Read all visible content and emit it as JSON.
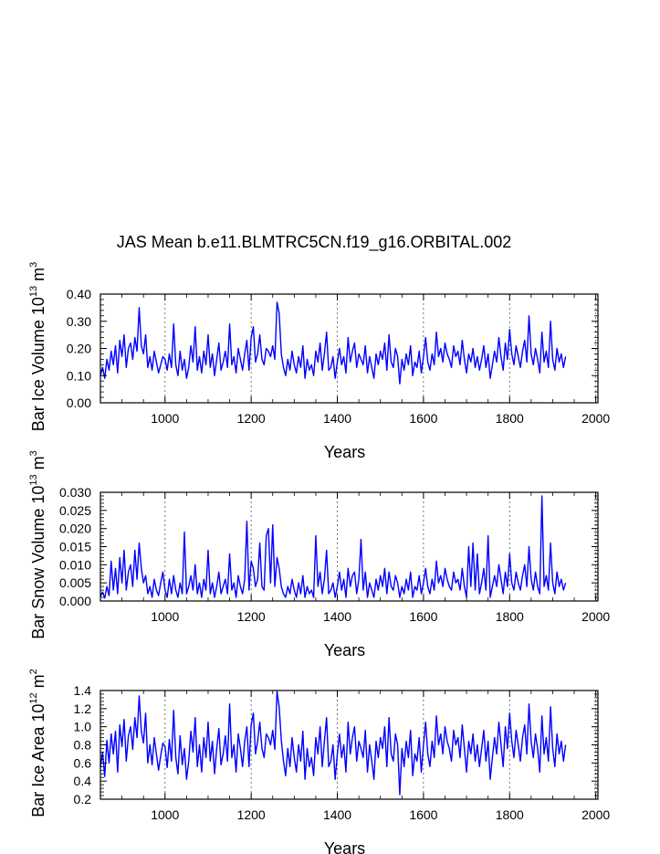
{
  "title": "JAS Mean b.e11.BLMTRC5CN.f19_g16.ORBITAL.002",
  "colors": {
    "series": "#0000ff",
    "axis": "#000000",
    "grid": "#555555"
  },
  "chart_data": [
    {
      "type": "line",
      "name": "Bar Ice Volume",
      "ylabel": {
        "main": "Bar Ice Volume 10",
        "exp": "13",
        "unit": " m",
        "unit_exp": "3"
      },
      "xlabel": "Years",
      "xlim": [
        850,
        2005
      ],
      "ylim": [
        0.0,
        0.4
      ],
      "xticks": [
        1000,
        1200,
        1400,
        1600,
        1800,
        2000
      ],
      "xtick_labels": [
        "1000",
        "1200",
        "1400",
        "1600",
        "1800",
        "2000"
      ],
      "yticks": [
        0.0,
        0.1,
        0.2,
        0.3,
        0.4
      ],
      "ytick_labels": [
        "0.00",
        "0.10",
        "0.20",
        "0.30",
        "0.40"
      ],
      "grid_x": [
        1000,
        1200,
        1400,
        1600,
        1800,
        2000
      ],
      "series": {
        "x_start": 850,
        "x_step": 5,
        "values": [
          0.1,
          0.13,
          0.09,
          0.16,
          0.12,
          0.19,
          0.14,
          0.21,
          0.11,
          0.23,
          0.17,
          0.25,
          0.13,
          0.2,
          0.22,
          0.16,
          0.24,
          0.19,
          0.35,
          0.21,
          0.18,
          0.25,
          0.13,
          0.17,
          0.12,
          0.19,
          0.15,
          0.11,
          0.14,
          0.17,
          0.16,
          0.12,
          0.18,
          0.13,
          0.29,
          0.14,
          0.1,
          0.19,
          0.12,
          0.16,
          0.09,
          0.13,
          0.21,
          0.15,
          0.28,
          0.12,
          0.17,
          0.11,
          0.19,
          0.14,
          0.25,
          0.13,
          0.18,
          0.1,
          0.16,
          0.22,
          0.12,
          0.15,
          0.19,
          0.13,
          0.29,
          0.14,
          0.17,
          0.11,
          0.2,
          0.16,
          0.12,
          0.18,
          0.23,
          0.12,
          0.24,
          0.28,
          0.15,
          0.18,
          0.25,
          0.16,
          0.14,
          0.2,
          0.19,
          0.17,
          0.21,
          0.16,
          0.37,
          0.33,
          0.18,
          0.13,
          0.1,
          0.16,
          0.12,
          0.19,
          0.14,
          0.11,
          0.17,
          0.13,
          0.21,
          0.09,
          0.16,
          0.12,
          0.14,
          0.1,
          0.19,
          0.15,
          0.22,
          0.12,
          0.18,
          0.26,
          0.12,
          0.13,
          0.17,
          0.09,
          0.15,
          0.2,
          0.14,
          0.17,
          0.11,
          0.24,
          0.15,
          0.19,
          0.22,
          0.13,
          0.18,
          0.16,
          0.14,
          0.21,
          0.11,
          0.17,
          0.13,
          0.09,
          0.18,
          0.14,
          0.19,
          0.16,
          0.22,
          0.12,
          0.25,
          0.15,
          0.13,
          0.2,
          0.17,
          0.07,
          0.16,
          0.12,
          0.18,
          0.14,
          0.21,
          0.1,
          0.15,
          0.13,
          0.19,
          0.11,
          0.17,
          0.24,
          0.15,
          0.12,
          0.18,
          0.14,
          0.26,
          0.17,
          0.2,
          0.15,
          0.22,
          0.18,
          0.16,
          0.13,
          0.21,
          0.17,
          0.19,
          0.14,
          0.23,
          0.16,
          0.11,
          0.18,
          0.15,
          0.2,
          0.13,
          0.17,
          0.12,
          0.16,
          0.21,
          0.13,
          0.18,
          0.09,
          0.14,
          0.19,
          0.15,
          0.24,
          0.17,
          0.12,
          0.22,
          0.16,
          0.27,
          0.18,
          0.14,
          0.21,
          0.17,
          0.13,
          0.19,
          0.23,
          0.15,
          0.32,
          0.18,
          0.14,
          0.2,
          0.16,
          0.11,
          0.26,
          0.15,
          0.19,
          0.13,
          0.3,
          0.16,
          0.12,
          0.2,
          0.15,
          0.18,
          0.13,
          0.17
        ]
      }
    },
    {
      "type": "line",
      "name": "Bar Snow Volume",
      "ylabel": {
        "main": "Bar Snow Volume 10",
        "exp": "13",
        "unit": " m",
        "unit_exp": "3"
      },
      "xlabel": "Years",
      "xlim": [
        850,
        2005
      ],
      "ylim": [
        0.0,
        0.03
      ],
      "xticks": [
        1000,
        1200,
        1400,
        1600,
        1800,
        2000
      ],
      "xtick_labels": [
        "1000",
        "1200",
        "1400",
        "1600",
        "1800",
        "2000"
      ],
      "yticks": [
        0.0,
        0.005,
        0.01,
        0.015,
        0.02,
        0.025,
        0.03
      ],
      "ytick_labels": [
        "0.000",
        "0.005",
        "0.010",
        "0.015",
        "0.020",
        "0.025",
        "0.030"
      ],
      "grid_x": [
        1000,
        1200,
        1400,
        1600,
        1800,
        2000
      ],
      "series": {
        "x_start": 850,
        "x_step": 5,
        "values": [
          0.0012,
          0.0025,
          0.0008,
          0.004,
          0.0015,
          0.011,
          0.003,
          0.009,
          0.002,
          0.012,
          0.005,
          0.014,
          0.003,
          0.008,
          0.01,
          0.004,
          0.014,
          0.006,
          0.016,
          0.009,
          0.005,
          0.007,
          0.002,
          0.004,
          0.001,
          0.006,
          0.003,
          0.0015,
          0.005,
          0.008,
          0.003,
          0.001,
          0.006,
          0.002,
          0.007,
          0.003,
          0.001,
          0.005,
          0.002,
          0.019,
          0.002,
          0.004,
          0.007,
          0.003,
          0.01,
          0.002,
          0.005,
          0.001,
          0.006,
          0.003,
          0.014,
          0.002,
          0.005,
          0.001,
          0.004,
          0.008,
          0.002,
          0.004,
          0.006,
          0.002,
          0.013,
          0.003,
          0.005,
          0.001,
          0.007,
          0.004,
          0.002,
          0.006,
          0.022,
          0.003,
          0.011,
          0.009,
          0.004,
          0.006,
          0.016,
          0.004,
          0.003,
          0.018,
          0.02,
          0.005,
          0.021,
          0.004,
          0.012,
          0.009,
          0.004,
          0.002,
          0.001,
          0.004,
          0.002,
          0.006,
          0.003,
          0.001,
          0.005,
          0.002,
          0.007,
          0.001,
          0.004,
          0.002,
          0.003,
          0.001,
          0.018,
          0.004,
          0.008,
          0.002,
          0.006,
          0.014,
          0.002,
          0.003,
          0.005,
          0.001,
          0.004,
          0.008,
          0.003,
          0.006,
          0.001,
          0.009,
          0.004,
          0.007,
          0.008,
          0.002,
          0.006,
          0.017,
          0.003,
          0.008,
          0.001,
          0.005,
          0.003,
          0.001,
          0.006,
          0.003,
          0.007,
          0.004,
          0.009,
          0.002,
          0.008,
          0.004,
          0.003,
          0.007,
          0.005,
          0.001,
          0.004,
          0.002,
          0.006,
          0.003,
          0.008,
          0.001,
          0.004,
          0.003,
          0.007,
          0.002,
          0.005,
          0.009,
          0.004,
          0.002,
          0.006,
          0.003,
          0.011,
          0.005,
          0.007,
          0.004,
          0.009,
          0.006,
          0.004,
          0.003,
          0.008,
          0.005,
          0.006,
          0.003,
          0.009,
          0.004,
          0.001,
          0.015,
          0.004,
          0.016,
          0.003,
          0.013,
          0.002,
          0.005,
          0.009,
          0.003,
          0.018,
          0.001,
          0.004,
          0.007,
          0.004,
          0.01,
          0.006,
          0.002,
          0.008,
          0.004,
          0.013,
          0.005,
          0.003,
          0.008,
          0.005,
          0.003,
          0.007,
          0.01,
          0.004,
          0.015,
          0.006,
          0.003,
          0.008,
          0.004,
          0.002,
          0.029,
          0.004,
          0.007,
          0.003,
          0.016,
          0.005,
          0.002,
          0.008,
          0.004,
          0.006,
          0.003,
          0.005
        ]
      }
    },
    {
      "type": "line",
      "name": "Bar Ice Area",
      "ylabel": {
        "main": "Bar Ice Area 10",
        "exp": "12",
        "unit": " m",
        "unit_exp": "2"
      },
      "xlabel": "Years",
      "xlim": [
        850,
        2005
      ],
      "ylim": [
        0.2,
        1.4
      ],
      "xticks": [
        1000,
        1200,
        1400,
        1600,
        1800,
        2000
      ],
      "xtick_labels": [
        "1000",
        "1200",
        "1400",
        "1600",
        "1800",
        "2000"
      ],
      "yticks": [
        0.2,
        0.4,
        0.6,
        0.8,
        1.0,
        1.2,
        1.4
      ],
      "ytick_labels": [
        "0.2",
        "0.4",
        "0.6",
        "0.8",
        "1.0",
        "1.2",
        "1.4"
      ],
      "grid_x": [
        1000,
        1200,
        1400,
        1600,
        1800,
        2000
      ],
      "series": {
        "x_start": 850,
        "x_step": 5,
        "values": [
          0.55,
          0.72,
          0.45,
          0.85,
          0.6,
          0.92,
          0.7,
          0.95,
          0.5,
          1.02,
          0.78,
          1.08,
          0.62,
          0.9,
          1.0,
          0.75,
          1.1,
          0.88,
          1.34,
          0.95,
          0.82,
          1.15,
          0.6,
          0.8,
          0.58,
          0.88,
          0.7,
          0.52,
          0.68,
          0.82,
          0.78,
          0.55,
          0.86,
          0.62,
          1.18,
          0.66,
          0.48,
          0.9,
          0.58,
          0.76,
          0.42,
          0.62,
          0.95,
          0.72,
          1.1,
          0.56,
          0.8,
          0.5,
          0.88,
          0.66,
          1.05,
          0.62,
          0.84,
          0.48,
          0.76,
          0.98,
          0.58,
          0.7,
          0.9,
          0.62,
          1.25,
          0.66,
          0.8,
          0.5,
          0.92,
          0.76,
          0.56,
          0.84,
          1.0,
          0.56,
          1.02,
          1.15,
          0.7,
          0.84,
          1.05,
          0.76,
          0.66,
          0.92,
          0.88,
          0.8,
          0.96,
          0.75,
          1.39,
          1.22,
          0.85,
          0.62,
          0.46,
          0.76,
          0.56,
          0.88,
          0.66,
          0.5,
          0.8,
          0.62,
          0.95,
          0.42,
          0.76,
          0.56,
          0.66,
          0.46,
          0.88,
          0.7,
          1.0,
          0.56,
          0.84,
          1.1,
          0.56,
          0.62,
          0.8,
          0.42,
          0.7,
          0.92,
          0.66,
          0.8,
          0.5,
          1.05,
          0.7,
          0.88,
          1.0,
          0.62,
          0.84,
          0.76,
          0.66,
          0.96,
          0.5,
          0.8,
          0.62,
          0.42,
          0.84,
          0.66,
          0.88,
          0.76,
          1.0,
          0.56,
          1.1,
          0.7,
          0.62,
          0.92,
          0.8,
          0.25,
          0.76,
          0.56,
          0.84,
          0.66,
          0.96,
          0.46,
          0.7,
          0.62,
          0.88,
          0.5,
          0.8,
          1.05,
          0.7,
          0.56,
          0.84,
          0.66,
          1.12,
          0.8,
          0.92,
          0.7,
          1.0,
          0.84,
          0.76,
          0.62,
          0.96,
          0.8,
          0.88,
          0.66,
          1.02,
          0.76,
          0.5,
          0.84,
          0.7,
          0.92,
          0.62,
          0.8,
          0.56,
          0.76,
          0.96,
          0.62,
          0.84,
          0.42,
          0.66,
          0.88,
          0.7,
          1.05,
          0.8,
          0.56,
          1.0,
          0.76,
          1.15,
          0.84,
          0.66,
          0.96,
          0.8,
          0.62,
          0.88,
          1.02,
          0.7,
          1.25,
          0.84,
          0.66,
          0.92,
          0.76,
          0.5,
          1.12,
          0.7,
          0.88,
          0.62,
          1.22,
          0.76,
          0.56,
          0.92,
          0.7,
          0.84,
          0.62,
          0.8
        ]
      }
    }
  ]
}
